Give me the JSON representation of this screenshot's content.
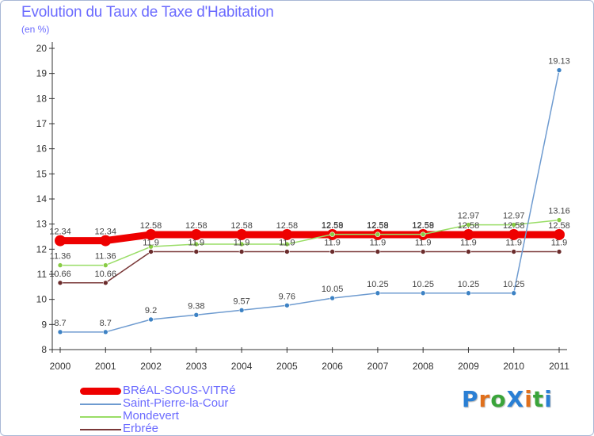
{
  "title": "Evolution du Taux de Taxe d'Habitation",
  "subtitle": "(en %)",
  "logo": "ProXiti",
  "logo_colors": [
    "#2a7fd4",
    "#e0701c",
    "#3aa43a",
    "#2a7fd4",
    "#e0701c",
    "#3aa43a",
    "#2a7fd4"
  ],
  "chart_data": {
    "type": "line",
    "categories": [
      "2000",
      "2001",
      "2002",
      "2003",
      "2004",
      "2005",
      "2006",
      "2007",
      "2008",
      "2009",
      "2010",
      "2011"
    ],
    "ylim": [
      8,
      20
    ],
    "yticks": [
      8,
      9,
      10,
      11,
      12,
      13,
      14,
      15,
      16,
      17,
      18,
      19,
      20
    ],
    "grid": false,
    "legend_position": "bottom-left",
    "series": [
      {
        "name": "BRéAL-SOUS-VITRé",
        "color": "#ee0000",
        "emphasis": true,
        "values": [
          12.34,
          12.34,
          12.58,
          12.58,
          12.58,
          12.58,
          12.58,
          12.58,
          12.58,
          12.58,
          12.58,
          12.58
        ],
        "labels": [
          "12.34",
          "12.34",
          "12.58",
          "12.58",
          "12.58",
          "12.58",
          "12.58",
          "12.58",
          "12.58",
          "12.58",
          "12.58",
          "12.58"
        ]
      },
      {
        "name": "Saint-Pierre-la-Cour",
        "color": "#6e9bd0",
        "marker": "#3d82c4",
        "values": [
          8.7,
          8.7,
          9.2,
          9.38,
          9.57,
          9.76,
          10.05,
          10.25,
          10.25,
          10.25,
          10.25,
          19.13
        ],
        "labels": [
          "8.7",
          "8.7",
          "9.2",
          "9.38",
          "9.57",
          "9.76",
          "10.05",
          "10.25",
          "10.25",
          "10.25",
          "10.25",
          "19.13"
        ]
      },
      {
        "name": "Mondevert",
        "color": "#99dd66",
        "marker": "#88cc44",
        "values": [
          11.36,
          11.36,
          12.1,
          12.2,
          12.2,
          12.2,
          12.59,
          12.59,
          12.59,
          12.97,
          12.97,
          13.16
        ],
        "labels": [
          "11.36",
          "11.36",
          "",
          "",
          "",
          "",
          "12.59",
          "12.59",
          "12.59",
          "12.97",
          "12.97",
          "13.16"
        ]
      },
      {
        "name": "Erbrée",
        "color": "#7a3838",
        "marker": "#6b2c2c",
        "values": [
          10.66,
          10.66,
          11.9,
          11.9,
          11.9,
          11.9,
          11.9,
          11.9,
          11.9,
          11.9,
          11.9,
          11.9
        ],
        "labels": [
          "10.66",
          "10.66",
          "11.9",
          "11.9",
          "11.9",
          "11.9",
          "11.9",
          "11.9",
          "11.9",
          "11.9",
          "11.9",
          "11.9"
        ]
      }
    ]
  }
}
